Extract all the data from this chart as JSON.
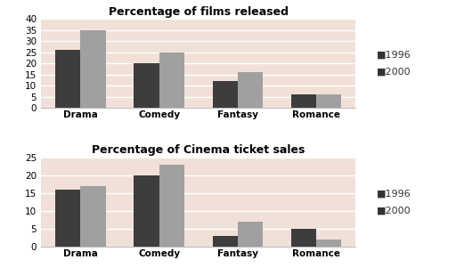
{
  "categories": [
    "Drama",
    "Comedy",
    "Fantasy",
    "Romance"
  ],
  "chart1": {
    "title": "Percentage of films released",
    "values_1996": [
      26,
      20,
      12,
      6
    ],
    "values_2000": [
      35,
      25,
      16,
      6
    ],
    "ylim": [
      0,
      40
    ],
    "yticks": [
      0,
      5,
      10,
      15,
      20,
      25,
      30,
      35,
      40
    ]
  },
  "chart2": {
    "title": "Percentage of Cinema ticket sales",
    "values_1996": [
      16,
      20,
      3,
      5
    ],
    "values_2000": [
      17,
      23,
      7,
      2
    ],
    "ylim": [
      0,
      25
    ],
    "yticks": [
      0,
      5,
      10,
      15,
      20,
      25
    ]
  },
  "color_1996": "#3d3d3d",
  "color_2000": "#a0a0a0",
  "legend_labels": [
    "1996",
    "2000"
  ],
  "bar_width": 0.32,
  "plot_bg_color": "#f0e0d8",
  "fig_background": "#ffffff",
  "title_fontsize": 9,
  "tick_fontsize": 7.5,
  "legend_fontsize": 8,
  "axis_label_fontsize": 8
}
